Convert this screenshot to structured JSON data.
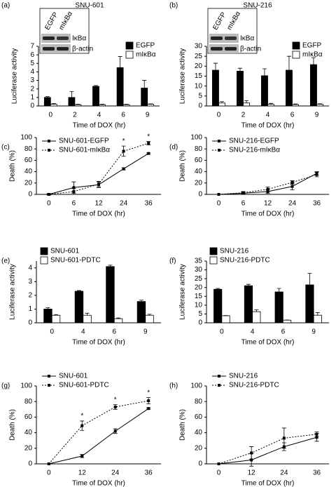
{
  "chart_data": [
    {
      "type": "bar",
      "label": "(a)",
      "title": "SNU-601",
      "ylabel": "Luciferase activity",
      "xlabel": "Time of DOX (hr)",
      "inset": {
        "columns": [
          "EGFP",
          "mIκBα"
        ],
        "rows": [
          "IκBα",
          "β-actin"
        ]
      },
      "categories": [
        "0",
        "2",
        "4",
        "6",
        "9"
      ],
      "ylim": [
        0,
        7
      ],
      "yticks": [
        0,
        1,
        2,
        3,
        4,
        5,
        6,
        7
      ],
      "series": [
        {
          "name": "EGFP",
          "color": "#000000",
          "values": [
            1.0,
            1.0,
            2.3,
            4.5,
            2.1
          ],
          "errors": [
            0.1,
            0.7,
            0.1,
            1.3,
            0.9
          ]
        },
        {
          "name": "mIκBα",
          "color": "#ffffff",
          "values": [
            0.2,
            0.15,
            0.15,
            0.15,
            0.2
          ],
          "errors": [
            0.1,
            0.05,
            0.05,
            0.05,
            0.05
          ]
        }
      ]
    },
    {
      "type": "bar",
      "label": "(b)",
      "title": "SNU-216",
      "ylabel": "Luciferase activity",
      "xlabel": "Time of DOX (hr)",
      "inset": {
        "columns": [
          "EGFP",
          "mIκBα"
        ],
        "rows": [
          "IκBα",
          "β-actin"
        ]
      },
      "categories": [
        "0",
        "2",
        "4",
        "6",
        "9"
      ],
      "ylim": [
        0,
        30
      ],
      "yticks": [
        0,
        5,
        10,
        15,
        20,
        25,
        30
      ],
      "series": [
        {
          "name": "EGFP",
          "color": "#000000",
          "values": [
            18,
            17.5,
            15.2,
            18,
            20.8
          ],
          "errors": [
            3.5,
            1.5,
            3.5,
            7,
            3.5
          ]
        },
        {
          "name": "mIκBα",
          "color": "#ffffff",
          "values": [
            1.5,
            1.5,
            0.8,
            0.7,
            0.8
          ],
          "errors": [
            0.7,
            1.2,
            0.5,
            0.3,
            0.3
          ]
        }
      ]
    },
    {
      "type": "line",
      "label": "(c)",
      "ylabel": "Death (%)",
      "xlabel": "Time of DOX (hr)",
      "categories": [
        "0",
        "6",
        "12",
        "24",
        "36"
      ],
      "ylim": [
        0,
        100
      ],
      "yticks": [
        0,
        20,
        40,
        60,
        80,
        100
      ],
      "series": [
        {
          "name": "SNU-601-EGFP",
          "color": "#000000",
          "line_style": "solid",
          "values": [
            0,
            12,
            17,
            45,
            72
          ],
          "errors": [
            1,
            10,
            5,
            2,
            1
          ]
        },
        {
          "name": "SNU-601-mIκBα",
          "color": "#000000",
          "line_style": "dotted",
          "values": [
            0,
            5,
            18,
            76,
            90
          ],
          "errors": [
            1,
            5,
            5,
            9,
            3
          ]
        }
      ],
      "annotations": [
        {
          "text": "*",
          "x": "24"
        },
        {
          "text": "*",
          "x": "36"
        }
      ]
    },
    {
      "type": "line",
      "label": "(d)",
      "ylabel": "Death (%)",
      "xlabel": "Time of DOX (hr)",
      "categories": [
        "0",
        "6",
        "12",
        "24",
        "36"
      ],
      "ylim": [
        0,
        100
      ],
      "yticks": [
        0,
        20,
        40,
        60,
        80,
        100
      ],
      "series": [
        {
          "name": "SNU-216-EGFP",
          "color": "#000000",
          "line_style": "solid",
          "values": [
            0,
            2,
            5,
            14,
            37
          ],
          "errors": [
            0,
            2,
            3,
            6,
            3
          ]
        },
        {
          "name": "SNU-216-mIκBα",
          "color": "#000000",
          "line_style": "dotted",
          "values": [
            0,
            3,
            9,
            21,
            35
          ],
          "errors": [
            0,
            2,
            4,
            3,
            4
          ]
        }
      ]
    },
    {
      "type": "bar",
      "label": "(e)",
      "ylabel": "Luciferase activity",
      "xlabel": "Time of DOX (hr)",
      "categories": [
        "0",
        "4",
        "6",
        "9"
      ],
      "ylim": [
        0,
        4.5
      ],
      "yticks": [
        0,
        1,
        2,
        3,
        4
      ],
      "series": [
        {
          "name": "SNU-601",
          "color": "#000000",
          "values": [
            1.0,
            2.3,
            4.1,
            1.55
          ],
          "errors": [
            0.1,
            0.05,
            0.1,
            0.1
          ]
        },
        {
          "name": "SNU-601-PDTC",
          "color": "#ffffff",
          "values": [
            0.55,
            0.55,
            0.3,
            0.55
          ],
          "errors": [
            0.05,
            0.15,
            0.05,
            0.07
          ]
        }
      ]
    },
    {
      "type": "bar",
      "label": "(f)",
      "ylabel": "Luciferase activity",
      "xlabel": "Time of DOX (hr)",
      "categories": [
        "0",
        "4",
        "6",
        "9"
      ],
      "ylim": [
        0,
        35
      ],
      "yticks": [
        0,
        5,
        10,
        15,
        20,
        25,
        30,
        35
      ],
      "series": [
        {
          "name": "SNU-216",
          "color": "#000000",
          "values": [
            19,
            21,
            17.5,
            21.5
          ],
          "errors": [
            0.5,
            0.8,
            2,
            6.5
          ]
        },
        {
          "name": "SNU-216-PDTC",
          "color": "#ffffff",
          "values": [
            4,
            6.3,
            1.5,
            4.3
          ],
          "errors": [
            0.1,
            1,
            0.1,
            1.5
          ]
        }
      ]
    },
    {
      "type": "line",
      "label": "(g)",
      "ylabel": "Death (%)",
      "xlabel": "Time of DOX (hr)",
      "categories": [
        "0",
        "12",
        "24",
        "36"
      ],
      "ylim": [
        0,
        100
      ],
      "yticks": [
        0,
        20,
        40,
        60,
        80,
        100
      ],
      "series": [
        {
          "name": "SNU-601",
          "color": "#000000",
          "line_style": "solid",
          "values": [
            0,
            10,
            42,
            71
          ],
          "errors": [
            0,
            2,
            3,
            1
          ]
        },
        {
          "name": "SNU-601-PDTC",
          "color": "#000000",
          "line_style": "dotted",
          "values": [
            0,
            49,
            73,
            81
          ],
          "errors": [
            0,
            6,
            3,
            4
          ]
        }
      ],
      "annotations": [
        {
          "text": "*",
          "x": "12"
        },
        {
          "text": "*",
          "x": "24"
        },
        {
          "text": "*",
          "x": "36"
        }
      ]
    },
    {
      "type": "line",
      "label": "(h)",
      "ylabel": "Death (%)",
      "xlabel": "Time of DOX (hr)",
      "categories": [
        "0",
        "12",
        "24",
        "36"
      ],
      "ylim": [
        0,
        100
      ],
      "yticks": [
        0,
        20,
        40,
        60,
        80,
        100
      ],
      "series": [
        {
          "name": "SNU-216",
          "color": "#000000",
          "line_style": "solid",
          "values": [
            0,
            5,
            22,
            34
          ],
          "errors": [
            0,
            8,
            5,
            5
          ]
        },
        {
          "name": "SNU-216-PDTC",
          "color": "#000000",
          "line_style": "dotted",
          "values": [
            0,
            14,
            33,
            38
          ],
          "errors": [
            0,
            8,
            13,
            3
          ]
        }
      ]
    }
  ]
}
